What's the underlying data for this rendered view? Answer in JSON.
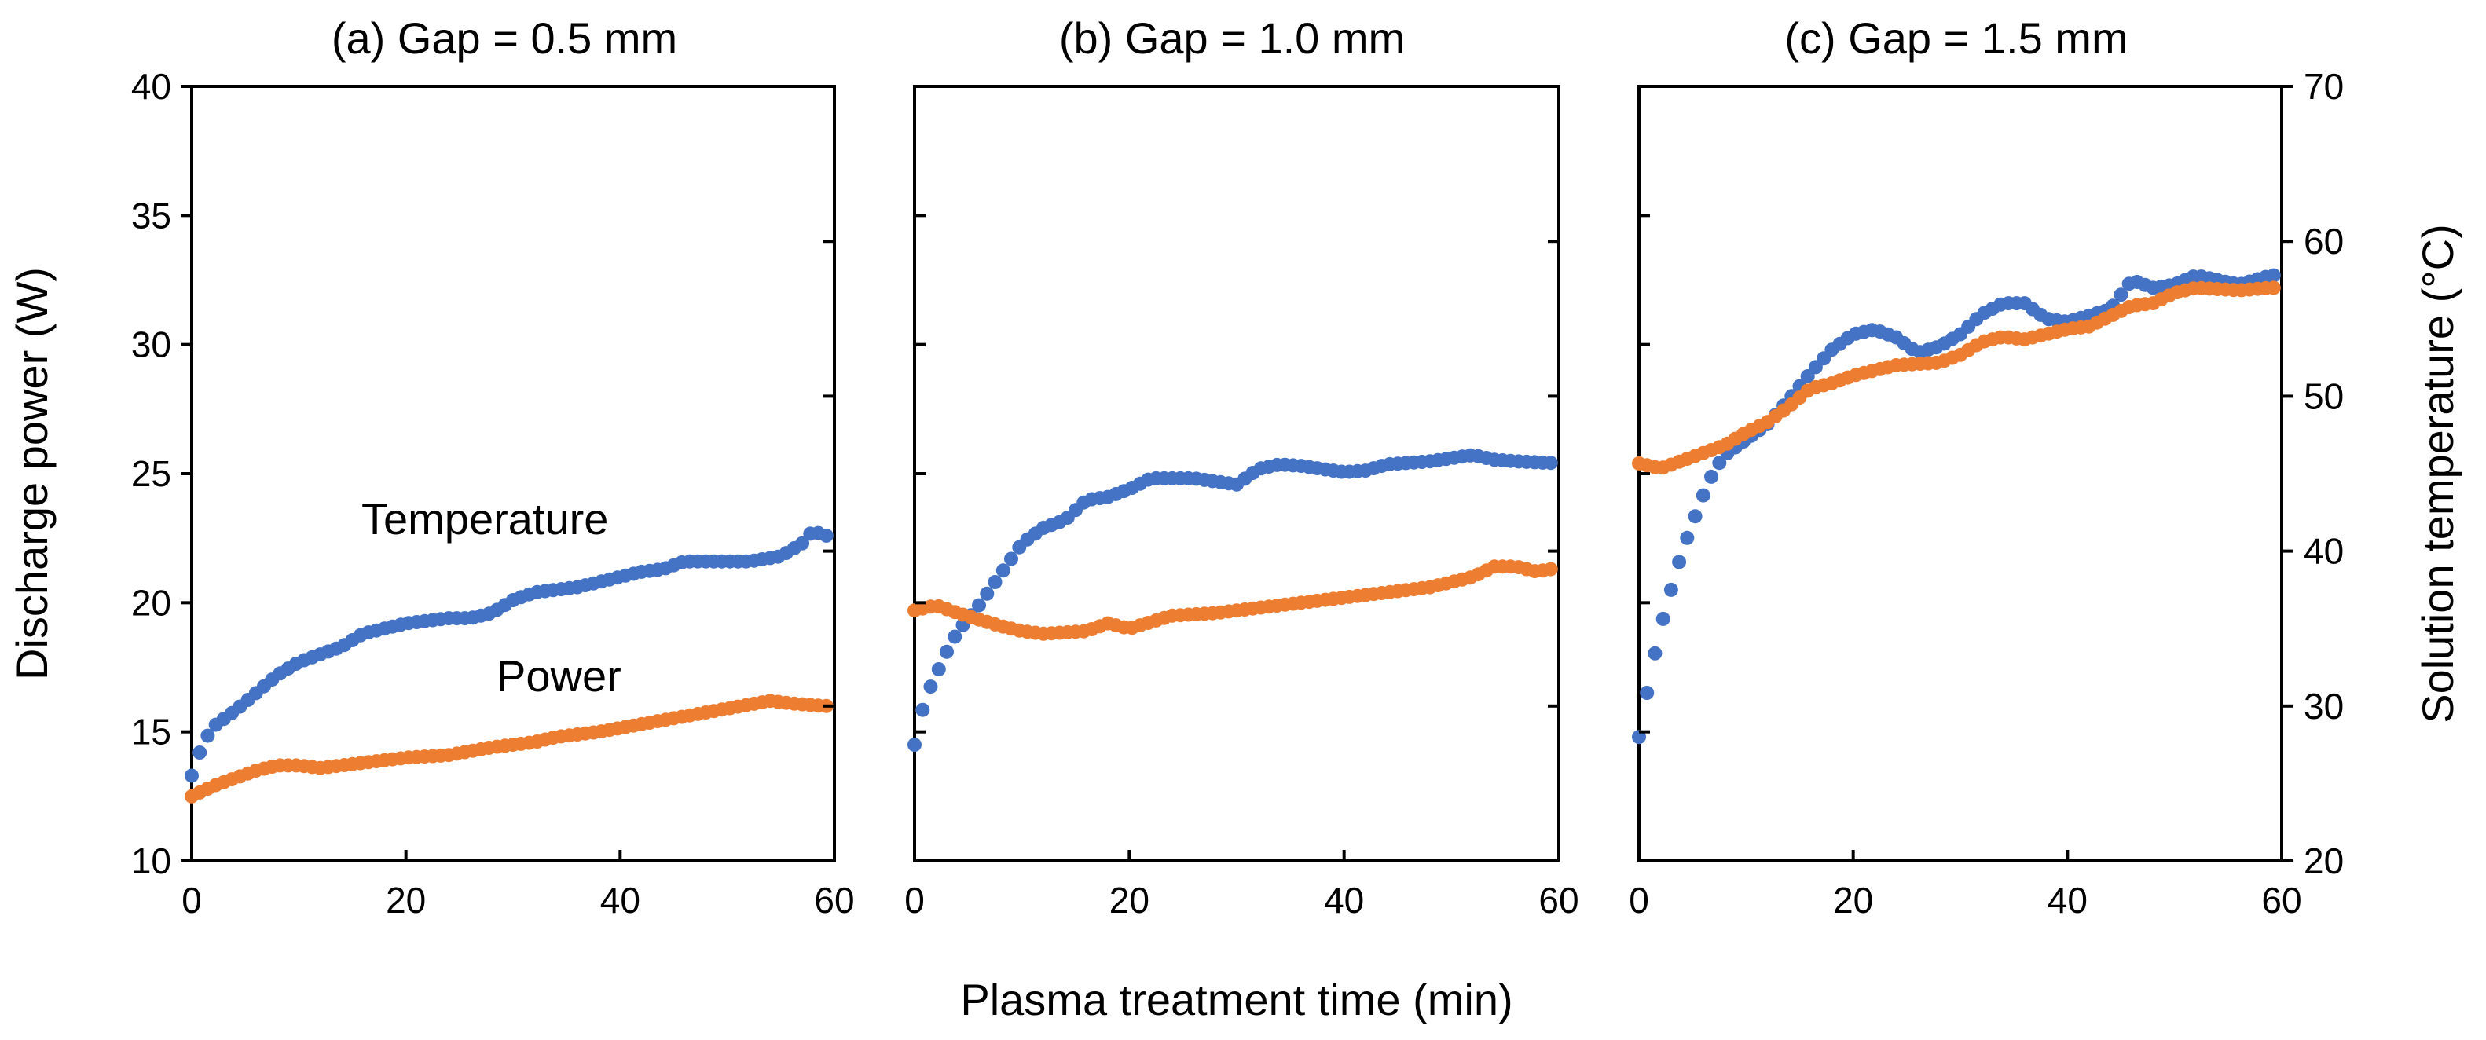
{
  "chart_data": {
    "type": "scatter",
    "xlabel": "Plasma treatment time (min)",
    "ylabel_left": "Discharge power (W)",
    "ylabel_right": "Solution temperature (°C)",
    "xlim": [
      0,
      60
    ],
    "ylim_left": [
      10,
      40
    ],
    "ylim_right": [
      20,
      70
    ],
    "xticks": [
      "0",
      "20",
      "40",
      "60"
    ],
    "yticks_left": [
      "10",
      "15",
      "20",
      "25",
      "30",
      "35",
      "40"
    ],
    "yticks_right": [
      "20",
      "30",
      "40",
      "50",
      "60",
      "70"
    ],
    "colors": {
      "temperature": "#4472C4",
      "power": "#ED7D31"
    },
    "annotations": {
      "temperature": "Temperature",
      "power": "Power"
    },
    "panels": [
      {
        "title": "(a) Gap = 0.5 mm",
        "temperature_keypoints": [
          [
            0,
            13.3
          ],
          [
            1,
            14.5
          ],
          [
            2,
            15.2
          ],
          [
            4,
            15.8
          ],
          [
            6,
            16.5
          ],
          [
            8,
            17.2
          ],
          [
            10,
            17.7
          ],
          [
            14,
            18.3
          ],
          [
            16,
            18.8
          ],
          [
            20,
            19.2
          ],
          [
            24,
            19.4
          ],
          [
            26,
            19.4
          ],
          [
            28,
            19.6
          ],
          [
            30,
            20.1
          ],
          [
            32,
            20.4
          ],
          [
            36,
            20.6
          ],
          [
            40,
            21.0
          ],
          [
            42,
            21.2
          ],
          [
            44,
            21.3
          ],
          [
            46,
            21.6
          ],
          [
            52,
            21.6
          ],
          [
            55,
            21.8
          ],
          [
            57,
            22.3
          ],
          [
            58,
            22.8
          ],
          [
            59,
            22.6
          ]
        ],
        "power_keypoints": [
          [
            0,
            12.5
          ],
          [
            2,
            12.9
          ],
          [
            4,
            13.2
          ],
          [
            6,
            13.5
          ],
          [
            8,
            13.7
          ],
          [
            10,
            13.7
          ],
          [
            12,
            13.6
          ],
          [
            16,
            13.8
          ],
          [
            20,
            14.0
          ],
          [
            24,
            14.1
          ],
          [
            28,
            14.4
          ],
          [
            32,
            14.6
          ],
          [
            34,
            14.8
          ],
          [
            38,
            15.0
          ],
          [
            42,
            15.3
          ],
          [
            46,
            15.6
          ],
          [
            50,
            15.9
          ],
          [
            54,
            16.2
          ],
          [
            56,
            16.1
          ],
          [
            59,
            16.0
          ]
        ]
      },
      {
        "title": "(b) Gap = 1.0 mm",
        "temperature_keypoints": [
          [
            0,
            27.5
          ],
          [
            1,
            30.5
          ],
          [
            2,
            32.0
          ],
          [
            3,
            33.5
          ],
          [
            4,
            34.8
          ],
          [
            6,
            36.5
          ],
          [
            8,
            38.5
          ],
          [
            10,
            40.5
          ],
          [
            12,
            41.5
          ],
          [
            14,
            42.0
          ],
          [
            16,
            43.3
          ],
          [
            18,
            43.5
          ],
          [
            20,
            44.0
          ],
          [
            22,
            44.7
          ],
          [
            26,
            44.7
          ],
          [
            30,
            44.3
          ],
          [
            32,
            45.3
          ],
          [
            34,
            45.6
          ],
          [
            36,
            45.5
          ],
          [
            38,
            45.3
          ],
          [
            40,
            45.1
          ],
          [
            42,
            45.2
          ],
          [
            44,
            45.6
          ],
          [
            48,
            45.8
          ],
          [
            50,
            46.0
          ],
          [
            52,
            46.2
          ],
          [
            54,
            45.9
          ],
          [
            56,
            45.8
          ],
          [
            59,
            45.7
          ]
        ],
        "power_keypoints": [
          [
            0,
            19.7
          ],
          [
            2,
            19.9
          ],
          [
            4,
            19.6
          ],
          [
            8,
            19.1
          ],
          [
            10,
            18.9
          ],
          [
            12,
            18.8
          ],
          [
            16,
            18.9
          ],
          [
            18,
            19.2
          ],
          [
            20,
            19.0
          ],
          [
            24,
            19.5
          ],
          [
            28,
            19.6
          ],
          [
            32,
            19.8
          ],
          [
            36,
            20.0
          ],
          [
            40,
            20.2
          ],
          [
            44,
            20.4
          ],
          [
            48,
            20.6
          ],
          [
            52,
            21.0
          ],
          [
            54,
            21.4
          ],
          [
            56,
            21.4
          ],
          [
            58,
            21.2
          ],
          [
            59,
            21.3
          ]
        ]
      },
      {
        "title": "(c) Gap = 1.5 mm",
        "temperature_keypoints": [
          [
            0,
            28.0
          ],
          [
            1,
            31.8
          ],
          [
            2,
            35.0
          ],
          [
            3,
            37.5
          ],
          [
            4,
            39.9
          ],
          [
            5,
            41.8
          ],
          [
            6,
            43.6
          ],
          [
            7,
            45.2
          ],
          [
            8,
            46.2
          ],
          [
            10,
            47.2
          ],
          [
            12,
            48.2
          ],
          [
            14,
            49.8
          ],
          [
            16,
            51.5
          ],
          [
            18,
            53.0
          ],
          [
            20,
            54.0
          ],
          [
            22,
            54.3
          ],
          [
            24,
            53.8
          ],
          [
            26,
            52.8
          ],
          [
            28,
            53.2
          ],
          [
            30,
            54.0
          ],
          [
            32,
            55.3
          ],
          [
            34,
            56.0
          ],
          [
            36,
            56.0
          ],
          [
            38,
            55.0
          ],
          [
            40,
            54.8
          ],
          [
            42,
            55.2
          ],
          [
            44,
            55.6
          ],
          [
            46,
            57.5
          ],
          [
            48,
            57.0
          ],
          [
            50,
            57.2
          ],
          [
            52,
            57.8
          ],
          [
            56,
            57.2
          ],
          [
            59,
            57.8
          ]
        ],
        "power_keypoints": [
          [
            0,
            25.4
          ],
          [
            2,
            25.2
          ],
          [
            4,
            25.5
          ],
          [
            6,
            25.8
          ],
          [
            8,
            26.1
          ],
          [
            10,
            26.6
          ],
          [
            12,
            27.0
          ],
          [
            14,
            27.6
          ],
          [
            16,
            28.3
          ],
          [
            18,
            28.5
          ],
          [
            20,
            28.8
          ],
          [
            24,
            29.2
          ],
          [
            28,
            29.3
          ],
          [
            30,
            29.6
          ],
          [
            32,
            30.1
          ],
          [
            34,
            30.3
          ],
          [
            36,
            30.2
          ],
          [
            38,
            30.4
          ],
          [
            40,
            30.6
          ],
          [
            42,
            30.7
          ],
          [
            44,
            31.1
          ],
          [
            46,
            31.5
          ],
          [
            48,
            31.6
          ],
          [
            50,
            32.0
          ],
          [
            52,
            32.2
          ],
          [
            56,
            32.1
          ],
          [
            59,
            32.2
          ]
        ]
      }
    ]
  }
}
